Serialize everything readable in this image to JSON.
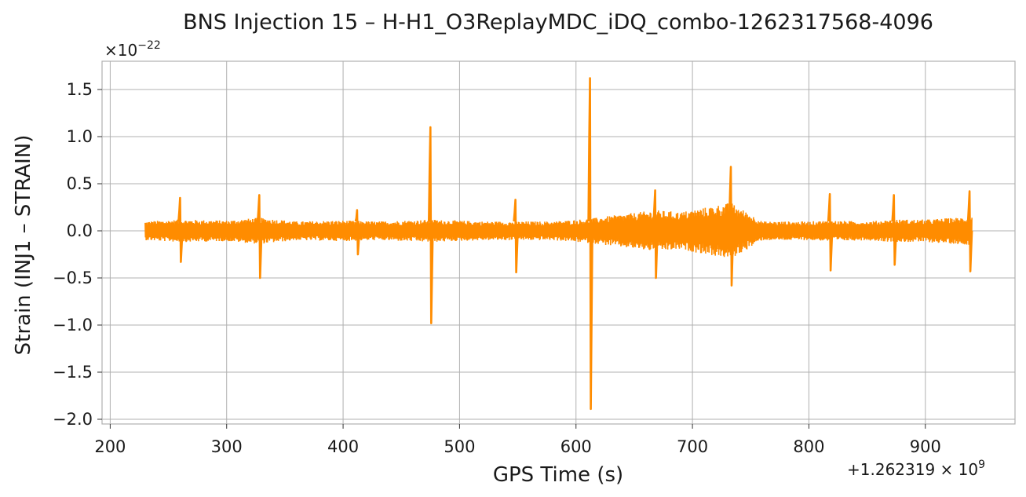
{
  "chart_data": {
    "type": "line",
    "title": "BNS Injection 15 – H-H1_O3ReplayMDC_iDQ_combo-1262317568-4096",
    "xlabel": "GPS Time (s)",
    "ylabel": "Strain (INJ1 – STRAIN)",
    "x_offset_label": "+1.262319 × 10",
    "x_offset_exp": "9",
    "y_scale_label": "×10",
    "y_scale_exp": "−22",
    "xlim": [
      193,
      977
    ],
    "ylim": [
      -2.05,
      1.8
    ],
    "x_ticks": [
      200,
      300,
      400,
      500,
      600,
      700,
      800,
      900
    ],
    "x_tick_labels": [
      "200",
      "300",
      "400",
      "500",
      "600",
      "700",
      "800",
      "900"
    ],
    "y_ticks": [
      -2.0,
      -1.5,
      -1.0,
      -0.5,
      0.0,
      0.5,
      1.0,
      1.5
    ],
    "y_tick_labels": [
      "−2.0",
      "−1.5",
      "−1.0",
      "−0.5",
      "0.0",
      "0.5",
      "1.0",
      "1.5"
    ],
    "grid": true,
    "series": [
      {
        "color": "#ff8c00",
        "x_range": [
          230,
          940
        ],
        "envelope": [
          [
            230,
            0.1
          ],
          [
            260,
            0.12
          ],
          [
            300,
            0.11
          ],
          [
            328,
            0.14
          ],
          [
            360,
            0.1
          ],
          [
            400,
            0.11
          ],
          [
            430,
            0.1
          ],
          [
            475,
            0.12
          ],
          [
            520,
            0.1
          ],
          [
            548,
            0.1
          ],
          [
            580,
            0.1
          ],
          [
            612,
            0.13
          ],
          [
            630,
            0.16
          ],
          [
            668,
            0.22
          ],
          [
            690,
            0.2
          ],
          [
            733,
            0.3
          ],
          [
            760,
            0.1
          ],
          [
            800,
            0.1
          ],
          [
            818,
            0.11
          ],
          [
            850,
            0.1
          ],
          [
            873,
            0.12
          ],
          [
            900,
            0.12
          ],
          [
            940,
            0.15
          ]
        ],
        "spikes": [
          {
            "x": 260,
            "max": 0.35,
            "min": -0.33
          },
          {
            "x": 328,
            "max": 0.38,
            "min": -0.5
          },
          {
            "x": 412,
            "max": 0.22,
            "min": -0.25
          },
          {
            "x": 475,
            "max": 1.1,
            "min": -0.98
          },
          {
            "x": 548,
            "max": 0.33,
            "min": -0.44
          },
          {
            "x": 612,
            "max": 1.62,
            "min": -1.89
          },
          {
            "x": 668,
            "max": 0.43,
            "min": -0.5
          },
          {
            "x": 733,
            "max": 0.68,
            "min": -0.58
          },
          {
            "x": 818,
            "max": 0.39,
            "min": -0.42
          },
          {
            "x": 873,
            "max": 0.38,
            "min": -0.36
          },
          {
            "x": 938,
            "max": 0.42,
            "min": -0.43
          }
        ]
      }
    ]
  }
}
